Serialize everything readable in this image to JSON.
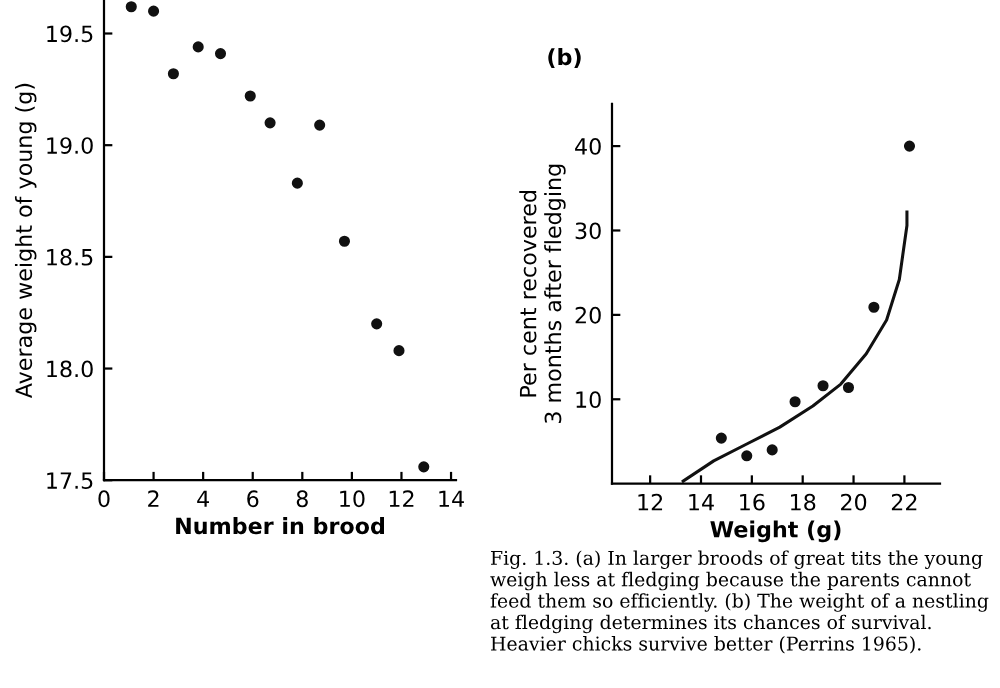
{
  "chart_data": [
    {
      "type": "scatter",
      "xlabel": "Number in brood",
      "ylabel": "Average weight of young (g)",
      "x": [
        1.1,
        2.0,
        2.8,
        3.8,
        4.7,
        5.9,
        6.7,
        7.8,
        8.7,
        9.7,
        11.0,
        11.9,
        12.9
      ],
      "values": [
        19.62,
        19.6,
        19.32,
        19.44,
        19.41,
        19.22,
        19.1,
        18.83,
        19.09,
        18.57,
        18.2,
        18.08,
        17.56
      ],
      "color": "#111111",
      "marker": "circle",
      "grid": false,
      "legend": false,
      "xlim": [
        0,
        14.2
      ],
      "ylim": [
        17.5,
        19.65
      ],
      "xticks": [
        0,
        2,
        4,
        6,
        8,
        10,
        12,
        14
      ],
      "yticks": [
        17.5,
        {
          "value": 18,
          "label": "18.0"
        },
        18.5,
        {
          "value": 19,
          "label": "19.0"
        },
        19.5
      ]
    },
    {
      "type": "scatter",
      "title": "(b)",
      "xlabel": "Weight (g)",
      "ylabel": "Per cent recovered\n3 months after fledging",
      "grid": false,
      "legend": false,
      "series": [
        {
          "type": "scatter",
          "color": "#111111",
          "marker": "circle",
          "x": [
            14.8,
            15.8,
            16.8,
            17.7,
            18.8,
            19.8,
            20.8,
            22.2
          ],
          "values": [
            5.4,
            3.3,
            4.0,
            9.7,
            11.6,
            11.4,
            20.9,
            40
          ]
        },
        {
          "type": "line",
          "color": "#111111",
          "marker": "none",
          "x": [
            13.3,
            14.5,
            15.8,
            17.1,
            18.4,
            19.5,
            20.5,
            21.3,
            21.8,
            22.1,
            22.1
          ],
          "values": [
            0.3,
            2.7,
            4.7,
            6.7,
            9.2,
            11.8,
            15.4,
            19.4,
            24.2,
            30.6,
            32.2
          ]
        }
      ],
      "xlim": [
        10.5,
        23.4
      ],
      "ylim": [
        0,
        45
      ],
      "xticks": [
        12,
        14,
        16,
        18,
        20,
        22
      ],
      "yticks": [
        10,
        20,
        30,
        40
      ],
      "annotations": [
        "Fig. 1.3. (a) In larger broods of great tits the young weigh less at fledging because the parents cannot feed them so efficiently. (b) The weight of a nestling at fledging determines its chances of survival. Heavier chicks survive better (Perrins 1965)."
      ]
    }
  ]
}
